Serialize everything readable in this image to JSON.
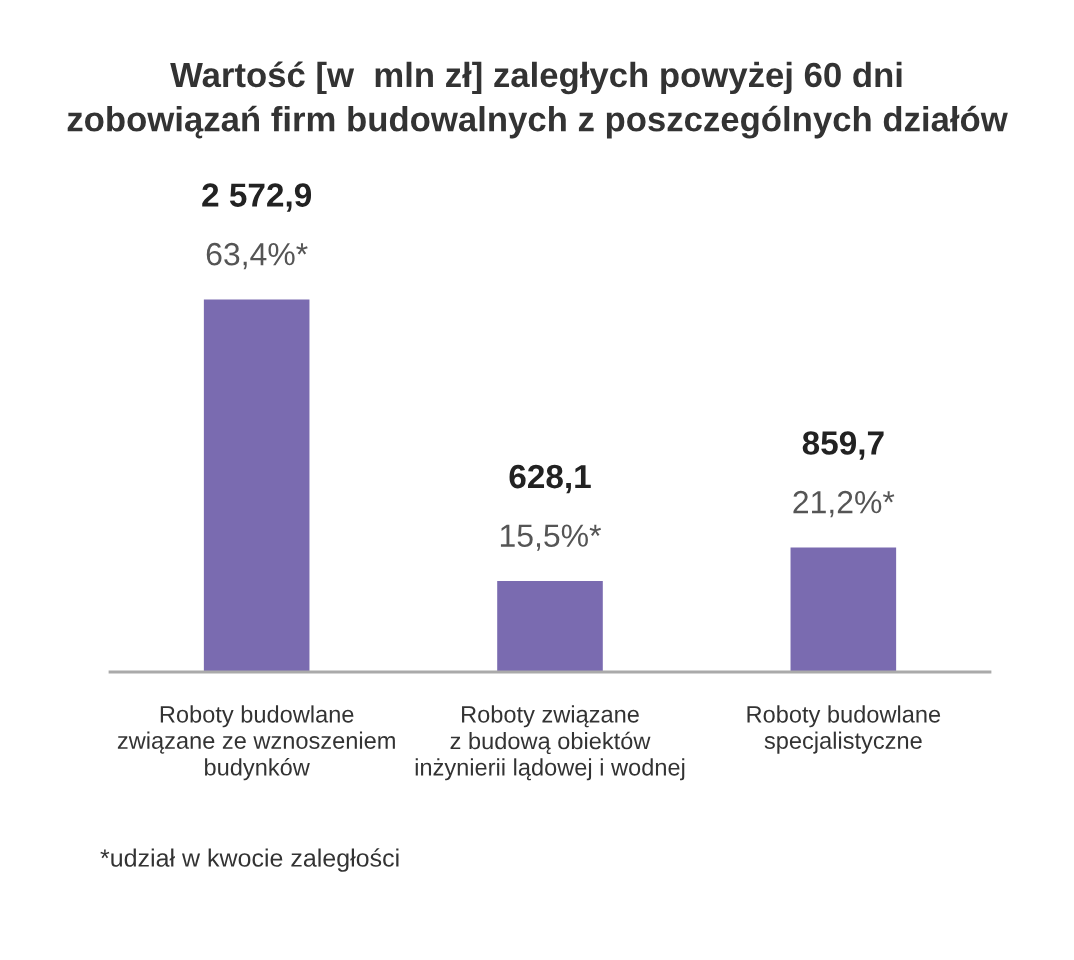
{
  "chart_data": {
    "type": "bar",
    "title": "Wartość [w  mln zł] zaległych powyżej 60 dni\nzobowiązań firm budowalnych z poszczególnych działów",
    "categories": [
      "Roboty budowlane\nzwiązane ze wznoszeniem\nbudynków",
      "Roboty związane\nz budową obiektów\ninżynierii lądowej i wodnej",
      "Roboty budowlane\nspecjalistyczne"
    ],
    "values": [
      2572.9,
      628.1,
      859.7
    ],
    "color": "#7a6bb0",
    "value_labels": [
      "2 572,9",
      "628,1",
      "859,7"
    ],
    "annotations": [
      {
        "text": "63,4%*",
        "x": "Roboty budowlane\nzwiązane ze wznoszeniem\nbudynków",
        "y": 2572.9
      },
      {
        "text": "15,5%*",
        "x": "Roboty związane\nz budową obiektów\ninżynierii lądowej i wodnej",
        "y": 628.1
      },
      {
        "text": "21,2%*",
        "x": "Roboty budowlane\nspecjalistyczne",
        "y": 859.7
      },
      "*udział w kwocie zaległości"
    ],
    "tick_labels": "x"
  }
}
